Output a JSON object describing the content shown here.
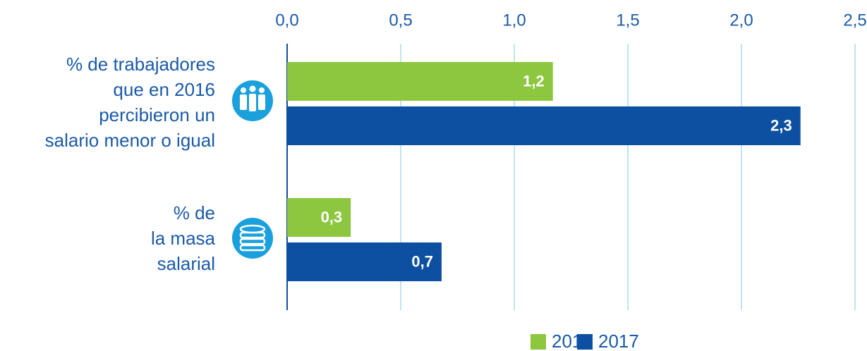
{
  "chart_data": {
    "type": "barh",
    "categories": [
      "% de trabajadores\nque en 2016\npercibieron un\nsalario menor o igual",
      "% de\nla masa\nsalarial"
    ],
    "series": [
      {
        "name": "2016",
        "color": "#8dc63f",
        "values": [
          1.17,
          0.28
        ],
        "value_labels": [
          "1,2",
          "0,3"
        ]
      },
      {
        "name": "2017",
        "color": "#0d4fa0",
        "values": [
          2.26,
          0.68
        ],
        "value_labels": [
          "2,3",
          "0,7"
        ]
      }
    ],
    "xlim": [
      0,
      2.5
    ],
    "xticks": [
      {
        "value": 0,
        "label": "0,0"
      },
      {
        "value": 0.5,
        "label": "0,5"
      },
      {
        "value": 1,
        "label": "1,0"
      },
      {
        "value": 1.5,
        "label": "1,5"
      },
      {
        "value": 2,
        "label": "2,0"
      },
      {
        "value": 2.5,
        "label": "2,5"
      }
    ],
    "grid": true,
    "legend": "bottom"
  }
}
